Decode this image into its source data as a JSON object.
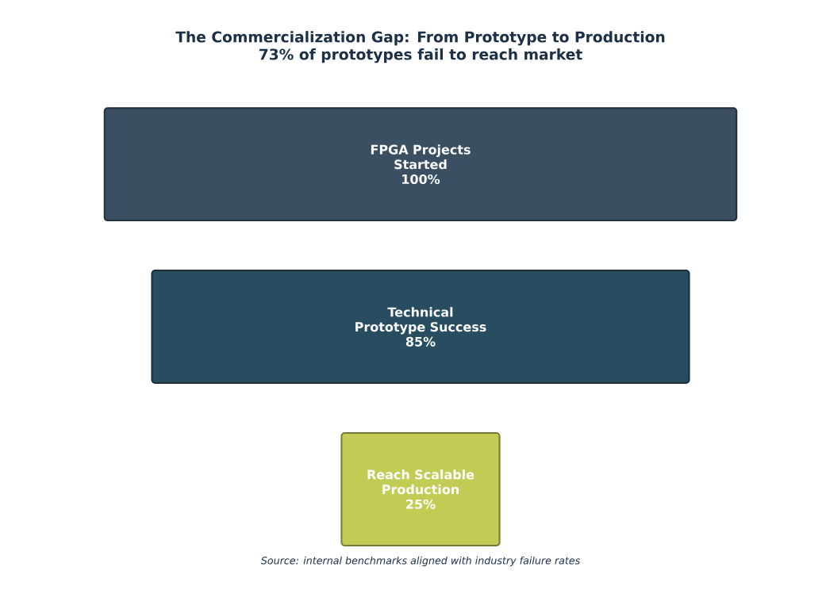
{
  "chart_data": {
    "type": "other",
    "title": "The Commercialization Gap: From Prototype to Production",
    "subtitle": "73% of prototypes fail to reach market",
    "categories": [
      "FPGA Projects Started",
      "Technical Prototype Success",
      "Reach Scalable Production"
    ],
    "values": [
      100,
      85,
      25
    ],
    "value_labels": [
      "100%",
      "85%",
      "25%"
    ],
    "colors": [
      "#3b4f63",
      "#284d60",
      "#c2cc55"
    ],
    "annotations": [
      "Source: internal benchmarks aligned with industry failure rates"
    ]
  }
}
